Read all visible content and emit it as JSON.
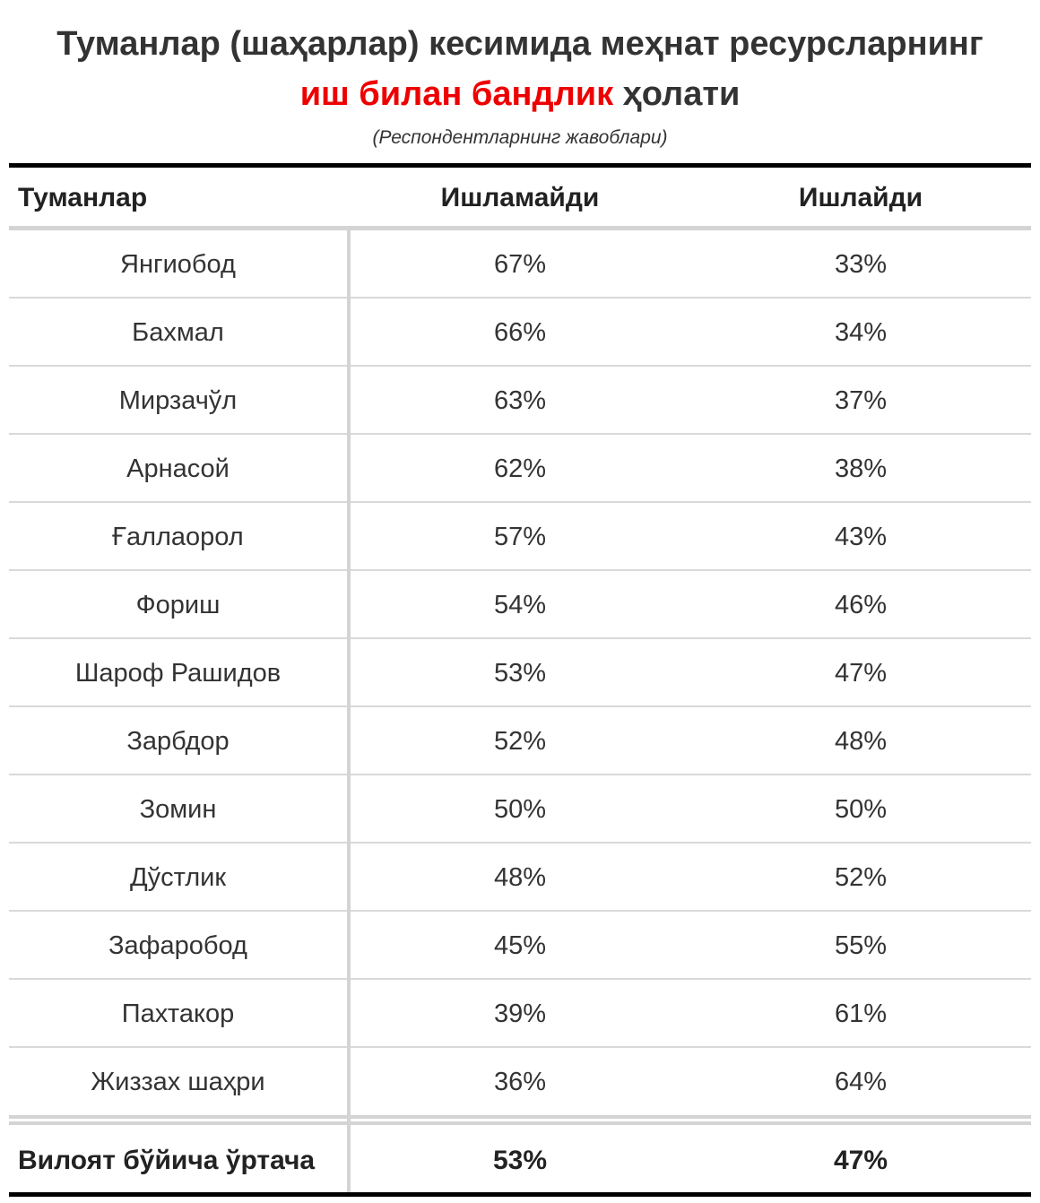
{
  "title_line1": "Туманлар (шаҳарлар) кесимида меҳнат ресурсларнинг",
  "title_line2_red": "иш билан бандлик",
  "title_line2_rest": "ҳолати",
  "subtitle": "(Респондентларнинг жавоблари)",
  "headers": {
    "district": "Туманлар",
    "not_working": "Ишламайди",
    "working": "Ишлайди"
  },
  "colors": {
    "highlight": "#ee0000",
    "rule": "#000000",
    "grid": "#d4d4d4"
  },
  "chart_data": {
    "type": "table",
    "columns": [
      "Туманлар",
      "Ишламайди",
      "Ишлайди"
    ],
    "rows": [
      {
        "district": "Янгиобод",
        "not_working": "67%",
        "working": "33%"
      },
      {
        "district": "Бахмал",
        "not_working": "66%",
        "working": "34%"
      },
      {
        "district": "Мирзачўл",
        "not_working": "63%",
        "working": "37%"
      },
      {
        "district": "Арнасой",
        "not_working": "62%",
        "working": "38%"
      },
      {
        "district": "Ғаллаорол",
        "not_working": "57%",
        "working": "43%"
      },
      {
        "district": "Фориш",
        "not_working": "54%",
        "working": "46%"
      },
      {
        "district": "Шароф Рашидов",
        "not_working": "53%",
        "working": "47%"
      },
      {
        "district": "Зарбдор",
        "not_working": "52%",
        "working": "48%"
      },
      {
        "district": "Зомин",
        "not_working": "50%",
        "working": "50%"
      },
      {
        "district": "Дўстлик",
        "not_working": "48%",
        "working": "52%"
      },
      {
        "district": "Зафаробод",
        "not_working": "45%",
        "working": "55%"
      },
      {
        "district": "Пахтакор",
        "not_working": "39%",
        "working": "61%"
      },
      {
        "district": "Жиззах шаҳри",
        "not_working": "36%",
        "working": "64%"
      }
    ],
    "total": {
      "district": "Вилоят бўйича ўртача",
      "not_working": "53%",
      "working": "47%"
    }
  }
}
